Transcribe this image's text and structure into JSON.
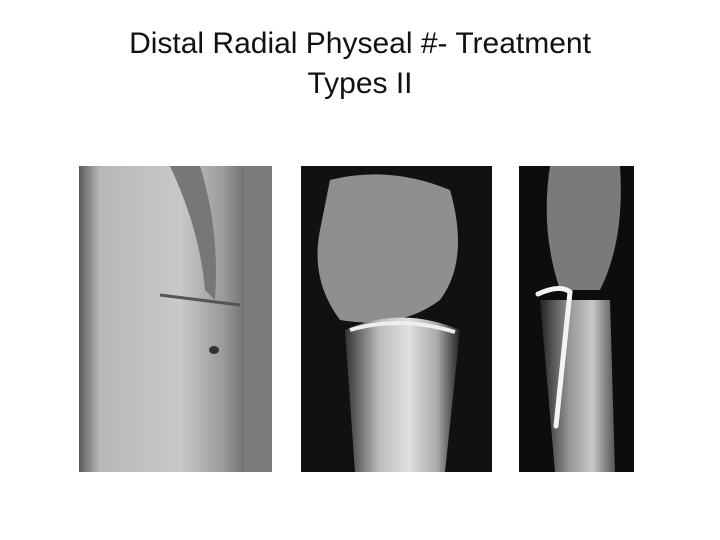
{
  "slide": {
    "title_lines": [
      "Distal Radial Physeal #- Treatment",
      "Types II"
    ]
  }
}
